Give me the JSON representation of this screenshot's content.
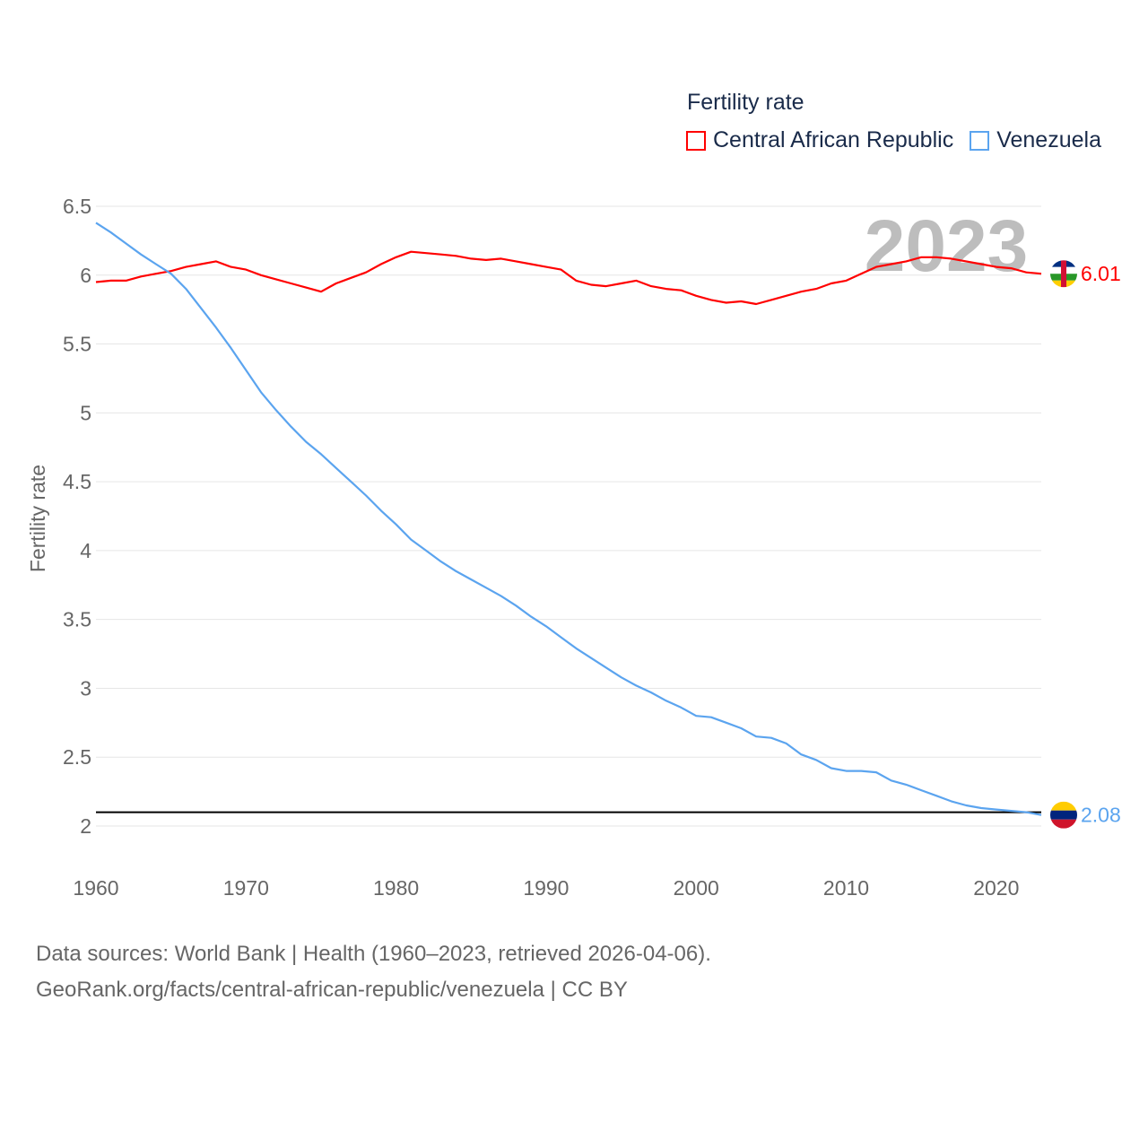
{
  "chart_data": {
    "type": "line",
    "title": "Fertility rate",
    "ylabel": "Fertility rate",
    "xlabel": "",
    "xlim": [
      1960,
      2023
    ],
    "ylim": [
      2,
      6.5
    ],
    "x_ticks": [
      1960,
      1970,
      1980,
      1990,
      2000,
      2010,
      2020
    ],
    "y_ticks": [
      2,
      2.5,
      3,
      3.5,
      4,
      4.5,
      5,
      5.5,
      6,
      6.5
    ],
    "y_tick_labels": [
      "2",
      "2.5",
      "3",
      "3.5",
      "4",
      "4.5",
      "5",
      "5.5",
      "6",
      "6.5"
    ],
    "grid": true,
    "legend_placement": "top-right",
    "year_label": "2023",
    "reference_line": 2.1,
    "x": [
      1960,
      1961,
      1962,
      1963,
      1964,
      1965,
      1966,
      1967,
      1968,
      1969,
      1970,
      1971,
      1972,
      1973,
      1974,
      1975,
      1976,
      1977,
      1978,
      1979,
      1980,
      1981,
      1982,
      1983,
      1984,
      1985,
      1986,
      1987,
      1988,
      1989,
      1990,
      1991,
      1992,
      1993,
      1994,
      1995,
      1996,
      1997,
      1998,
      1999,
      2000,
      2001,
      2002,
      2003,
      2004,
      2005,
      2006,
      2007,
      2008,
      2009,
      2010,
      2011,
      2012,
      2013,
      2014,
      2015,
      2016,
      2017,
      2018,
      2019,
      2020,
      2021,
      2022,
      2023
    ],
    "series": [
      {
        "name": "Central African Republic",
        "color": "#ff0000",
        "end_label": "6.01",
        "values": [
          5.95,
          5.96,
          5.96,
          5.99,
          6.01,
          6.03,
          6.06,
          6.08,
          6.1,
          6.06,
          6.04,
          6.0,
          5.97,
          5.94,
          5.91,
          5.88,
          5.94,
          5.98,
          6.02,
          6.08,
          6.13,
          6.17,
          6.16,
          6.15,
          6.14,
          6.12,
          6.11,
          6.12,
          6.1,
          6.08,
          6.06,
          6.04,
          5.96,
          5.93,
          5.92,
          5.94,
          5.96,
          5.92,
          5.9,
          5.89,
          5.85,
          5.82,
          5.8,
          5.81,
          5.79,
          5.82,
          5.85,
          5.88,
          5.9,
          5.94,
          5.96,
          6.01,
          6.06,
          6.08,
          6.1,
          6.13,
          6.13,
          6.12,
          6.1,
          6.08,
          6.06,
          6.05,
          6.02,
          6.01
        ]
      },
      {
        "name": "Venezuela",
        "color": "#5ba4ef",
        "end_label": "2.08",
        "values": [
          6.38,
          6.31,
          6.23,
          6.15,
          6.08,
          6.01,
          5.9,
          5.76,
          5.62,
          5.47,
          5.31,
          5.15,
          5.02,
          4.9,
          4.79,
          4.7,
          4.6,
          4.5,
          4.4,
          4.29,
          4.19,
          4.08,
          4.0,
          3.92,
          3.85,
          3.79,
          3.73,
          3.67,
          3.6,
          3.52,
          3.45,
          3.37,
          3.29,
          3.22,
          3.15,
          3.08,
          3.02,
          2.97,
          2.91,
          2.86,
          2.8,
          2.79,
          2.75,
          2.71,
          2.65,
          2.64,
          2.6,
          2.52,
          2.48,
          2.42,
          2.4,
          2.4,
          2.39,
          2.33,
          2.3,
          2.26,
          2.22,
          2.18,
          2.15,
          2.13,
          2.12,
          2.11,
          2.1,
          2.08
        ]
      }
    ]
  },
  "legend": {
    "title": "Fertility rate",
    "items": [
      "Central African Republic",
      "Venezuela"
    ]
  },
  "footer": {
    "line1": "Data sources: World Bank | Health (1960–2023, retrieved 2026-04-06).",
    "line2": "GeoRank.org/facts/central-african-republic/venezuela | CC BY"
  }
}
